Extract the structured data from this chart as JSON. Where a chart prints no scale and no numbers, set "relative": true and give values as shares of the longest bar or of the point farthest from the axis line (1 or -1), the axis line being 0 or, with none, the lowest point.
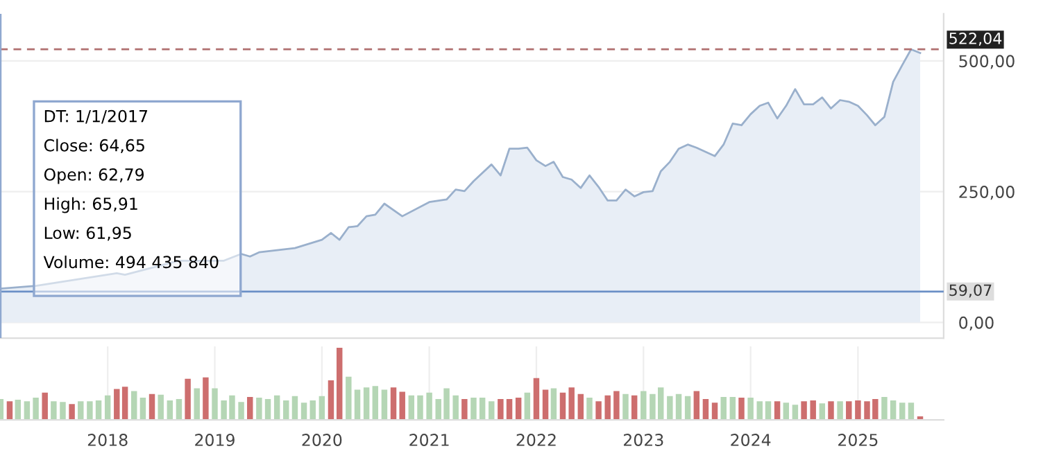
{
  "chart_data": [
    {
      "type": "area",
      "x": [
        "2017-01",
        "2017-05",
        "2018-02",
        "2018-03",
        "2018-09",
        "2019-02",
        "2019-04",
        "2019-05",
        "2019-06",
        "2019-10",
        "2020-01",
        "2020-02",
        "2020-03",
        "2020-04",
        "2020-05",
        "2020-06",
        "2020-07",
        "2020-08",
        "2020-10",
        "2021-01",
        "2021-03",
        "2021-04",
        "2021-05",
        "2021-06",
        "2021-08",
        "2021-09",
        "2021-10",
        "2021-11",
        "2021-12",
        "2022-01",
        "2022-02",
        "2022-03",
        "2022-04",
        "2022-05",
        "2022-06",
        "2022-07",
        "2022-08",
        "2022-09",
        "2022-10",
        "2022-11",
        "2022-12",
        "2023-01",
        "2023-02",
        "2023-03",
        "2023-04",
        "2023-05",
        "2023-06",
        "2023-07",
        "2023-08",
        "2023-09",
        "2023-10",
        "2023-11",
        "2023-12",
        "2024-01",
        "2024-02",
        "2024-03",
        "2024-04",
        "2024-05",
        "2024-06",
        "2024-07",
        "2024-08",
        "2024-09",
        "2024-10",
        "2024-11",
        "2024-12",
        "2025-01",
        "2025-02",
        "2025-03",
        "2025-04",
        "2025-05",
        "2025-06",
        "2025-07",
        "2025-08"
      ],
      "series": [
        {
          "color": "#9ab0cc",
          "values": [
            64.65,
            70,
            94,
            91,
            118,
            118,
            131,
            126,
            134,
            142,
            158,
            171,
            158,
            182,
            184,
            203,
            206,
            227,
            203,
            230,
            235,
            254,
            251,
            270,
            302,
            281,
            332,
            332,
            334,
            310,
            299,
            307,
            278,
            273,
            257,
            281,
            259,
            233,
            233,
            254,
            241,
            249,
            251,
            289,
            307,
            332,
            340,
            334,
            326,
            318,
            340,
            380,
            377,
            398,
            414,
            420,
            390,
            414,
            446,
            417,
            417,
            430,
            409,
            425,
            422,
            414,
            396,
            377,
            393,
            460,
            492,
            522.04,
            515
          ]
        }
      ],
      "xlim": [
        "2016-12-30",
        "2025-10-20"
      ],
      "ylim": [
        -30,
        590
      ],
      "yticks": [
        {
          "value": 0,
          "label": "0,00"
        },
        {
          "value": 250,
          "label": "250,00"
        },
        {
          "value": 500,
          "label": "500,00"
        }
      ],
      "tick_labels": "y",
      "grid": true,
      "ref_lines": [
        {
          "axis": "y",
          "value": 522.04,
          "label": "522,04",
          "color": "#b07070",
          "line_style": "dashed"
        },
        {
          "axis": "y",
          "value": 59.07,
          "label": "59,07",
          "color": "#6a8fc6",
          "line_style": "solid"
        },
        {
          "axis": "x",
          "value": "2017-01",
          "color": "#8fa8d0",
          "line_style": "solid"
        }
      ],
      "annotations": [
        "DT: 1/1/2017",
        "Close: 64,65",
        "Open: 62,79",
        "High: 65,91",
        "Low: 61,95",
        "Volume: 494 435 840"
      ]
    },
    {
      "type": "bar",
      "relative": true,
      "xlim": [
        "2016-12-30",
        "2025-10-20"
      ],
      "tick_labels": "x",
      "grid": "x",
      "xticks": [
        "2018",
        "2019",
        "2020",
        "2021",
        "2022",
        "2023",
        "2024",
        "2025"
      ],
      "x": [
        "2017-01",
        "2017-02",
        "2017-03",
        "2017-04",
        "2017-05",
        "2017-06",
        "2017-07",
        "2017-08",
        "2017-09",
        "2017-10",
        "2017-11",
        "2017-12",
        "2018-01",
        "2018-02",
        "2018-03",
        "2018-04",
        "2018-05",
        "2018-06",
        "2018-07",
        "2018-08",
        "2018-09",
        "2018-10",
        "2018-11",
        "2018-12",
        "2019-01",
        "2019-02",
        "2019-03",
        "2019-04",
        "2019-05",
        "2019-06",
        "2019-07",
        "2019-08",
        "2019-09",
        "2019-10",
        "2019-11",
        "2019-12",
        "2020-01",
        "2020-02",
        "2020-03",
        "2020-04",
        "2020-05",
        "2020-06",
        "2020-07",
        "2020-08",
        "2020-09",
        "2020-10",
        "2020-11",
        "2020-12",
        "2021-01",
        "2021-02",
        "2021-03",
        "2021-04",
        "2021-05",
        "2021-06",
        "2021-07",
        "2021-08",
        "2021-09",
        "2021-10",
        "2021-11",
        "2021-12",
        "2022-01",
        "2022-02",
        "2022-03",
        "2022-04",
        "2022-05",
        "2022-06",
        "2022-07",
        "2022-08",
        "2022-09",
        "2022-10",
        "2022-11",
        "2022-12",
        "2023-01",
        "2023-02",
        "2023-03",
        "2023-04",
        "2023-05",
        "2023-06",
        "2023-07",
        "2023-08",
        "2023-09",
        "2023-10",
        "2023-11",
        "2023-12",
        "2024-01",
        "2024-02",
        "2024-03",
        "2024-04",
        "2024-05",
        "2024-06",
        "2024-07",
        "2024-08",
        "2024-09",
        "2024-10",
        "2024-11",
        "2024-12",
        "2025-01",
        "2025-02",
        "2025-03",
        "2025-04",
        "2025-05",
        "2025-06",
        "2025-07",
        "2025-08"
      ],
      "values": [
        0.29,
        0.26,
        0.28,
        0.26,
        0.31,
        0.38,
        0.26,
        0.25,
        0.22,
        0.26,
        0.26,
        0.27,
        0.34,
        0.43,
        0.46,
        0.4,
        0.31,
        0.36,
        0.35,
        0.27,
        0.29,
        0.57,
        0.44,
        0.59,
        0.44,
        0.27,
        0.34,
        0.25,
        0.32,
        0.31,
        0.29,
        0.34,
        0.27,
        0.33,
        0.24,
        0.27,
        0.33,
        0.55,
        1,
        0.6,
        0.42,
        0.45,
        0.47,
        0.42,
        0.45,
        0.39,
        0.34,
        0.34,
        0.38,
        0.29,
        0.44,
        0.34,
        0.29,
        0.31,
        0.31,
        0.26,
        0.29,
        0.29,
        0.31,
        0.38,
        0.58,
        0.42,
        0.44,
        0.38,
        0.45,
        0.36,
        0.31,
        0.26,
        0.34,
        0.4,
        0.36,
        0.34,
        0.4,
        0.36,
        0.45,
        0.33,
        0.36,
        0.33,
        0.4,
        0.29,
        0.24,
        0.32,
        0.32,
        0.31,
        0.31,
        0.26,
        0.26,
        0.26,
        0.24,
        0.21,
        0.26,
        0.27,
        0.23,
        0.26,
        0.26,
        0.26,
        0.27,
        0.26,
        0.29,
        0.32,
        0.27,
        0.24,
        0.24,
        0.05
      ],
      "colors": [
        "#b5d6b5",
        "#cd6e6e",
        "#b5d6b5",
        "#b5d6b5",
        "#b5d6b5",
        "#cd6e6e",
        "#b5d6b5",
        "#b5d6b5",
        "#cd6e6e",
        "#b5d6b5",
        "#b5d6b5",
        "#b5d6b5",
        "#b5d6b5",
        "#cd6e6e",
        "#cd6e6e",
        "#b5d6b5",
        "#b5d6b5",
        "#cd6e6e",
        "#b5d6b5",
        "#b5d6b5",
        "#b5d6b5",
        "#cd6e6e",
        "#b5d6b5",
        "#cd6e6e",
        "#b5d6b5",
        "#b5d6b5",
        "#b5d6b5",
        "#b5d6b5",
        "#cd6e6e",
        "#b5d6b5",
        "#b5d6b5",
        "#b5d6b5",
        "#b5d6b5",
        "#b5d6b5",
        "#b5d6b5",
        "#b5d6b5",
        "#b5d6b5",
        "#cd6e6e",
        "#cd6e6e",
        "#b5d6b5",
        "#b5d6b5",
        "#b5d6b5",
        "#b5d6b5",
        "#b5d6b5",
        "#cd6e6e",
        "#cd6e6e",
        "#b5d6b5",
        "#b5d6b5",
        "#b5d6b5",
        "#b5d6b5",
        "#b5d6b5",
        "#b5d6b5",
        "#cd6e6e",
        "#b5d6b5",
        "#b5d6b5",
        "#b5d6b5",
        "#cd6e6e",
        "#cd6e6e",
        "#cd6e6e",
        "#b5d6b5",
        "#cd6e6e",
        "#cd6e6e",
        "#b5d6b5",
        "#cd6e6e",
        "#cd6e6e",
        "#cd6e6e",
        "#b5d6b5",
        "#cd6e6e",
        "#cd6e6e",
        "#cd6e6e",
        "#b5d6b5",
        "#cd6e6e",
        "#b5d6b5",
        "#b5d6b5",
        "#b5d6b5",
        "#b5d6b5",
        "#b5d6b5",
        "#b5d6b5",
        "#cd6e6e",
        "#cd6e6e",
        "#cd6e6e",
        "#b5d6b5",
        "#b5d6b5",
        "#cd6e6e",
        "#b5d6b5",
        "#b5d6b5",
        "#b5d6b5",
        "#cd6e6e",
        "#b5d6b5",
        "#b5d6b5",
        "#cd6e6e",
        "#cd6e6e",
        "#b5d6b5",
        "#cd6e6e",
        "#b5d6b5",
        "#cd6e6e",
        "#cd6e6e",
        "#cd6e6e",
        "#cd6e6e",
        "#b5d6b5",
        "#b5d6b5",
        "#b5d6b5",
        "#b5d6b5",
        "#cd6e6e"
      ]
    }
  ]
}
